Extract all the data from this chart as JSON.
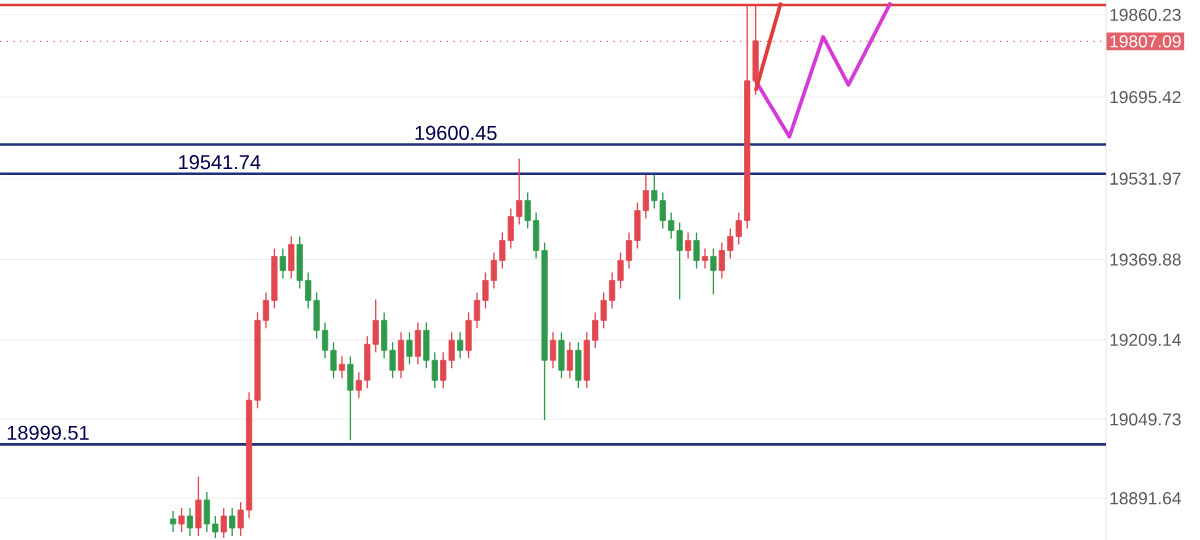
{
  "chart_data": {
    "type": "candlestick",
    "categories": [
      null,
      null,
      null,
      null,
      null,
      null,
      null,
      null,
      null,
      null,
      null,
      null,
      null,
      null,
      null,
      null,
      null,
      null,
      null,
      null,
      null,
      null,
      null,
      null,
      null,
      null,
      null,
      null,
      null,
      null,
      null,
      null,
      null,
      null,
      null,
      null,
      null,
      null,
      null,
      null,
      null,
      null,
      null,
      null,
      null,
      null,
      null,
      null,
      null,
      null,
      null,
      null,
      null,
      null,
      null,
      null,
      null,
      null,
      null,
      null,
      null,
      null,
      null,
      null,
      null,
      null,
      null,
      null,
      null,
      null,
      null,
      null,
      null,
      null,
      null,
      null,
      null,
      null,
      null,
      null,
      null,
      null,
      null,
      null,
      null,
      null,
      null,
      null,
      null,
      null,
      null,
      null,
      null,
      null,
      null,
      null,
      null,
      null,
      null,
      null,
      null,
      null,
      null,
      null,
      null,
      null,
      null,
      null,
      null,
      null,
      null,
      null,
      null,
      null,
      null,
      null,
      null,
      null,
      null,
      null,
      null,
      null,
      null,
      null,
      null,
      null,
      null,
      null,
      null,
      null,
      null
    ],
    "ohlc": [
      null,
      null,
      null,
      null,
      null,
      null,
      null,
      null,
      null,
      null,
      null,
      null,
      null,
      null,
      null,
      null,
      null,
      null,
      null,
      null,
      [
        18850,
        18866,
        18824,
        18840
      ],
      [
        18840,
        18872,
        18824,
        18856
      ],
      [
        18856,
        18872,
        18816,
        18832
      ],
      [
        18832,
        18935,
        18816,
        18888
      ],
      [
        18888,
        18904,
        18824,
        18840
      ],
      [
        18840,
        18856,
        18812,
        18824
      ],
      [
        18824,
        18872,
        18812,
        18856
      ],
      [
        18856,
        18872,
        18816,
        18832
      ],
      [
        18832,
        18884,
        18816,
        18868
      ],
      [
        18868,
        19104,
        18852,
        19088
      ],
      [
        19088,
        19264,
        19072,
        19248
      ],
      [
        19248,
        19304,
        19232,
        19288
      ],
      [
        19288,
        19392,
        19272,
        19376
      ],
      [
        19376,
        19392,
        19332,
        19348
      ],
      [
        19348,
        19416,
        19332,
        19400
      ],
      [
        19400,
        19416,
        19312,
        19328
      ],
      [
        19328,
        19344,
        19272,
        19288
      ],
      [
        19288,
        19304,
        19212,
        19228
      ],
      [
        19228,
        19244,
        19172,
        19188
      ],
      [
        19188,
        19204,
        19132,
        19148
      ],
      [
        19148,
        19176,
        19132,
        19160
      ],
      [
        19160,
        19176,
        19008,
        19108
      ],
      [
        19108,
        19144,
        19092,
        19128
      ],
      [
        19128,
        19216,
        19112,
        19200
      ],
      [
        19200,
        19290,
        19184,
        19248
      ],
      [
        19248,
        19264,
        19172,
        19188
      ],
      [
        19188,
        19204,
        19132,
        19148
      ],
      [
        19148,
        19224,
        19132,
        19208
      ],
      [
        19208,
        19224,
        19160,
        19176
      ],
      [
        19176,
        19244,
        19160,
        19228
      ],
      [
        19228,
        19244,
        19152,
        19168
      ],
      [
        19168,
        19184,
        19112,
        19128
      ],
      [
        19128,
        19184,
        19112,
        19168
      ],
      [
        19168,
        19224,
        19152,
        19208
      ],
      [
        19208,
        19224,
        19172,
        19188
      ],
      [
        19188,
        19264,
        19172,
        19248
      ],
      [
        19248,
        19304,
        19232,
        19288
      ],
      [
        19288,
        19344,
        19272,
        19328
      ],
      [
        19328,
        19384,
        19312,
        19368
      ],
      [
        19368,
        19424,
        19352,
        19408
      ],
      [
        19408,
        19472,
        19392,
        19456
      ],
      [
        19456,
        19572,
        19440,
        19488
      ],
      [
        19488,
        19504,
        19432,
        19448
      ],
      [
        19448,
        19464,
        19372,
        19388
      ],
      [
        19388,
        19404,
        19048,
        19168
      ],
      [
        19168,
        19224,
        19152,
        19208
      ],
      [
        19208,
        19224,
        19132,
        19148
      ],
      [
        19148,
        19204,
        19132,
        19188
      ],
      [
        19188,
        19204,
        19112,
        19128
      ],
      [
        19128,
        19224,
        19112,
        19208
      ],
      [
        19208,
        19264,
        19192,
        19248
      ],
      [
        19248,
        19304,
        19232,
        19288
      ],
      [
        19288,
        19344,
        19272,
        19328
      ],
      [
        19328,
        19384,
        19312,
        19368
      ],
      [
        19368,
        19424,
        19352,
        19408
      ],
      [
        19408,
        19484,
        19392,
        19468
      ],
      [
        19468,
        19540,
        19452,
        19508
      ],
      [
        19508,
        19540,
        19472,
        19488
      ],
      [
        19488,
        19504,
        19432,
        19448
      ],
      [
        19448,
        19464,
        19412,
        19428
      ],
      [
        19428,
        19444,
        19290,
        19388
      ],
      [
        19388,
        19424,
        19372,
        19408
      ],
      [
        19408,
        19424,
        19352,
        19368
      ],
      [
        19368,
        19392,
        19352,
        19376
      ],
      [
        19376,
        19392,
        19300,
        19348
      ],
      [
        19348,
        19404,
        19332,
        19388
      ],
      [
        19388,
        19432,
        19372,
        19416
      ],
      [
        19416,
        19464,
        19400,
        19448
      ],
      [
        19448,
        19880,
        19432,
        19728
      ],
      [
        19728,
        19880,
        19700,
        19808
      ],
      null,
      null,
      null,
      null,
      null,
      null,
      null,
      null,
      null,
      null,
      null,
      null,
      null,
      null,
      null,
      null,
      null,
      null,
      null,
      null,
      null,
      null,
      null,
      null,
      null,
      null,
      null,
      null,
      null,
      null,
      null,
      null,
      null,
      null,
      null,
      null,
      null,
      null,
      null,
      null,
      null
    ],
    "colors": [
      null,
      null,
      null,
      null,
      null,
      null,
      null,
      null,
      null,
      null,
      null,
      null,
      null,
      null,
      null,
      null,
      null,
      null,
      null,
      null,
      "#2f9a4c",
      "#e2474f",
      "#2f9a4c",
      "#e2474f",
      "#2f9a4c",
      "#2f9a4c",
      "#e2474f",
      "#2f9a4c",
      "#e2474f",
      "#e2474f",
      "#e2474f",
      "#e2474f",
      "#e2474f",
      "#2f9a4c",
      "#e2474f",
      "#2f9a4c",
      "#2f9a4c",
      "#2f9a4c",
      "#2f9a4c",
      "#2f9a4c",
      "#e2474f",
      "#2f9a4c",
      "#e2474f",
      "#e2474f",
      "#e2474f",
      "#2f9a4c",
      "#2f9a4c",
      "#e2474f",
      "#2f9a4c",
      "#e2474f",
      "#2f9a4c",
      "#2f9a4c",
      "#e2474f",
      "#e2474f",
      "#2f9a4c",
      "#e2474f",
      "#e2474f",
      "#e2474f",
      "#e2474f",
      "#e2474f",
      "#e2474f",
      "#e2474f",
      "#2f9a4c",
      "#2f9a4c",
      "#2f9a4c",
      "#e2474f",
      "#2f9a4c",
      "#e2474f",
      "#2f9a4c",
      "#e2474f",
      "#e2474f",
      "#e2474f",
      "#e2474f",
      "#e2474f",
      "#e2474f",
      "#e2474f",
      "#e2474f",
      "#2f9a4c",
      "#2f9a4c",
      "#2f9a4c",
      "#2f9a4c",
      "#e2474f",
      "#2f9a4c",
      "#e2474f",
      "#2f9a4c",
      "#e2474f",
      "#e2474f",
      "#e2474f",
      "#e2474f",
      "#e2474f",
      null,
      null,
      null,
      null,
      null,
      null,
      null,
      null,
      null,
      null,
      null,
      null,
      null,
      null,
      null,
      null,
      null,
      null,
      null,
      null,
      null,
      null,
      null,
      null,
      null,
      null,
      null,
      null,
      null,
      null,
      null,
      null,
      null,
      null,
      null,
      null,
      null,
      null,
      null,
      null,
      null
    ],
    "series": [
      {
        "type": "line",
        "color": "#d63ad6",
        "values": [
          null,
          null,
          null,
          null,
          null,
          null,
          null,
          null,
          null,
          null,
          null,
          null,
          null,
          null,
          null,
          null,
          null,
          null,
          null,
          null,
          null,
          null,
          null,
          null,
          null,
          null,
          null,
          null,
          null,
          null,
          null,
          null,
          null,
          null,
          null,
          null,
          null,
          null,
          null,
          null,
          null,
          null,
          null,
          null,
          null,
          null,
          null,
          null,
          null,
          null,
          null,
          null,
          null,
          null,
          null,
          null,
          null,
          null,
          null,
          null,
          null,
          null,
          null,
          null,
          null,
          null,
          null,
          null,
          null,
          null,
          null,
          null,
          null,
          null,
          null,
          null,
          null,
          null,
          null,
          null,
          null,
          null,
          null,
          null,
          null,
          null,
          null,
          null,
          null,
          19728,
          null,
          null,
          null,
          19616,
          null,
          null,
          null,
          19816,
          null,
          null,
          19720,
          null,
          null,
          null,
          null,
          19885,
          null,
          null,
          null,
          null,
          null,
          null,
          null,
          null,
          null,
          null,
          null,
          null,
          null,
          null,
          null,
          null,
          null,
          null,
          null,
          null,
          null,
          null,
          null,
          null,
          null
        ]
      },
      {
        "type": "line",
        "color": "#e03a3a",
        "values": [
          null,
          null,
          null,
          null,
          null,
          null,
          null,
          null,
          null,
          null,
          null,
          null,
          null,
          null,
          null,
          null,
          null,
          null,
          null,
          null,
          null,
          null,
          null,
          null,
          null,
          null,
          null,
          null,
          null,
          null,
          null,
          null,
          null,
          null,
          null,
          null,
          null,
          null,
          null,
          null,
          null,
          null,
          null,
          null,
          null,
          null,
          null,
          null,
          null,
          null,
          null,
          null,
          null,
          null,
          null,
          null,
          null,
          null,
          null,
          null,
          null,
          null,
          null,
          null,
          null,
          null,
          null,
          null,
          null,
          null,
          null,
          null,
          null,
          null,
          null,
          null,
          null,
          null,
          null,
          null,
          null,
          null,
          null,
          null,
          null,
          null,
          null,
          null,
          null,
          19708,
          null,
          null,
          19885,
          null,
          null,
          null,
          null,
          null,
          null,
          null,
          null,
          null,
          null,
          null,
          null,
          null,
          null,
          null,
          null,
          null,
          null,
          null,
          null,
          null,
          null,
          null,
          null,
          null,
          null,
          null,
          null,
          null,
          null,
          null,
          null,
          null,
          null,
          null,
          null,
          null,
          null
        ]
      }
    ],
    "ylim": [
      18808,
      19890
    ],
    "yticks": [
      18891.64,
      19049.73,
      19209.14,
      19369.88,
      19531.97,
      19695.42,
      19860.23
    ],
    "ref_lines": [
      {
        "axis": "y",
        "value": 19880,
        "color": "#e03a3a"
      },
      {
        "axis": "y",
        "value": 19600.45,
        "label": "19600.45",
        "color": "#1f2f7a"
      },
      {
        "axis": "y",
        "value": 19541.74,
        "label": "19541.74",
        "color": "#1f2f7a"
      },
      {
        "axis": "y",
        "value": 18999.51,
        "label": "18999.51",
        "color": "#1f2f7a"
      },
      {
        "axis": "y",
        "value": 19807.09,
        "label": "19807.09",
        "color": "#e2626a",
        "line_style": "dotted"
      }
    ],
    "grid": "y",
    "marker": "none",
    "tick_labels": "y"
  }
}
